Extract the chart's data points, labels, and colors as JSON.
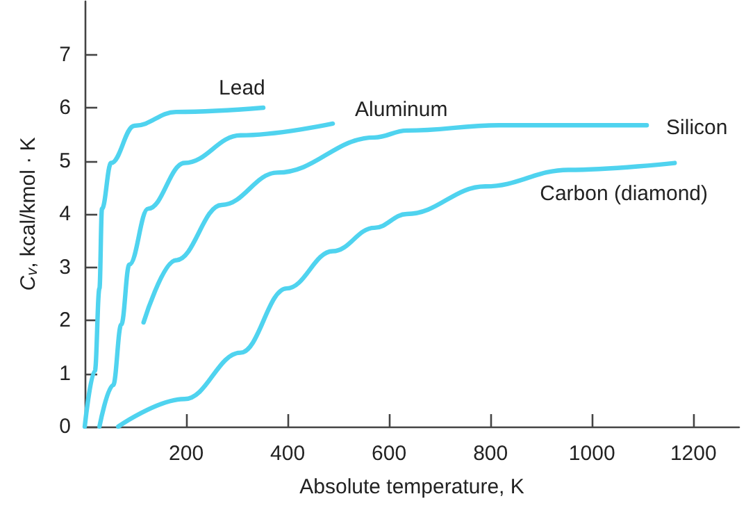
{
  "chart_data": {
    "type": "line",
    "xlabel": "Absolute temperature, K",
    "ylabel": "C$_{v}$, kcal/kmol · K",
    "xlim": [
      0,
      1290
    ],
    "ylim": [
      0,
      8
    ],
    "xticks": [
      200,
      400,
      600,
      800,
      1000,
      1200
    ],
    "yticks": [
      0,
      1,
      2,
      3,
      4,
      5,
      6,
      7
    ],
    "grid": false,
    "legend": false,
    "marker": "none",
    "line_style": "solid",
    "series": [
      {
        "name": "Lead",
        "color": "#4fd3ef",
        "x": [
          0,
          20,
          29,
          34,
          52,
          98,
          180,
          352
        ],
        "values": [
          0,
          1.05,
          2.6,
          4.1,
          4.96,
          5.66,
          5.92,
          6.0
        ]
      },
      {
        "name": "Aluminum",
        "color": "#4fd3ef",
        "x": [
          29,
          56,
          72,
          88,
          125,
          197,
          307,
          489
        ],
        "values": [
          0,
          0.78,
          1.92,
          3.05,
          4.1,
          4.96,
          5.48,
          5.7
        ]
      },
      {
        "name": "Silicon",
        "color": "#4fd3ef",
        "x": [
          116,
          180,
          270,
          380,
          571,
          635,
          817,
          1108
        ],
        "values": [
          1.96,
          3.13,
          4.17,
          4.78,
          5.44,
          5.57,
          5.67,
          5.67
        ]
      },
      {
        "name": "Carbon (diamond)",
        "color": "#4fd3ef",
        "x": [
          66,
          197,
          307,
          398,
          489,
          571,
          635,
          790,
          954,
          1163
        ],
        "values": [
          0,
          0.52,
          1.39,
          2.6,
          3.3,
          3.74,
          4.0,
          4.52,
          4.83,
          4.96
        ]
      }
    ]
  }
}
